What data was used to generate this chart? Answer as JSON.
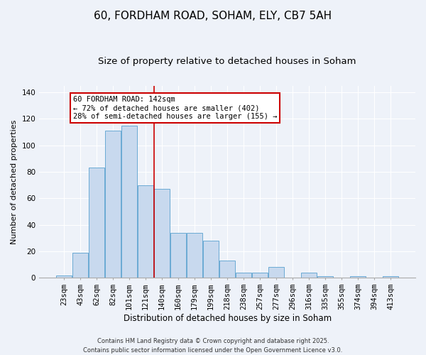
{
  "title": "60, FORDHAM ROAD, SOHAM, ELY, CB7 5AH",
  "subtitle": "Size of property relative to detached houses in Soham",
  "xlabel": "Distribution of detached houses by size in Soham",
  "ylabel": "Number of detached properties",
  "bar_labels": [
    "23sqm",
    "43sqm",
    "62sqm",
    "82sqm",
    "101sqm",
    "121sqm",
    "140sqm",
    "160sqm",
    "179sqm",
    "199sqm",
    "218sqm",
    "238sqm",
    "257sqm",
    "277sqm",
    "296sqm",
    "316sqm",
    "335sqm",
    "355sqm",
    "374sqm",
    "394sqm",
    "413sqm"
  ],
  "bar_values": [
    2,
    19,
    83,
    111,
    115,
    70,
    67,
    34,
    34,
    28,
    13,
    4,
    4,
    8,
    0,
    4,
    1,
    0,
    1,
    0,
    1
  ],
  "bar_color": "#c8d9ee",
  "bar_edge_color": "#6aaad4",
  "ylim": [
    0,
    145
  ],
  "yticks": [
    0,
    20,
    40,
    60,
    80,
    100,
    120,
    140
  ],
  "red_line_x": 5.5,
  "annotation_title": "60 FORDHAM ROAD: 142sqm",
  "annotation_line1": "← 72% of detached houses are smaller (402)",
  "annotation_line2": "28% of semi-detached houses are larger (155) →",
  "footer1": "Contains HM Land Registry data © Crown copyright and database right 2025.",
  "footer2": "Contains public sector information licensed under the Open Government Licence v3.0.",
  "background_color": "#eef2f9",
  "plot_bg_color": "#eef2f9",
  "title_fontsize": 11,
  "subtitle_fontsize": 9.5,
  "annotation_box_facecolor": "#ffffff",
  "annotation_box_edgecolor": "#cc0000",
  "red_line_color": "#cc0000",
  "grid_color": "#ffffff",
  "footer_fontsize": 6.0
}
